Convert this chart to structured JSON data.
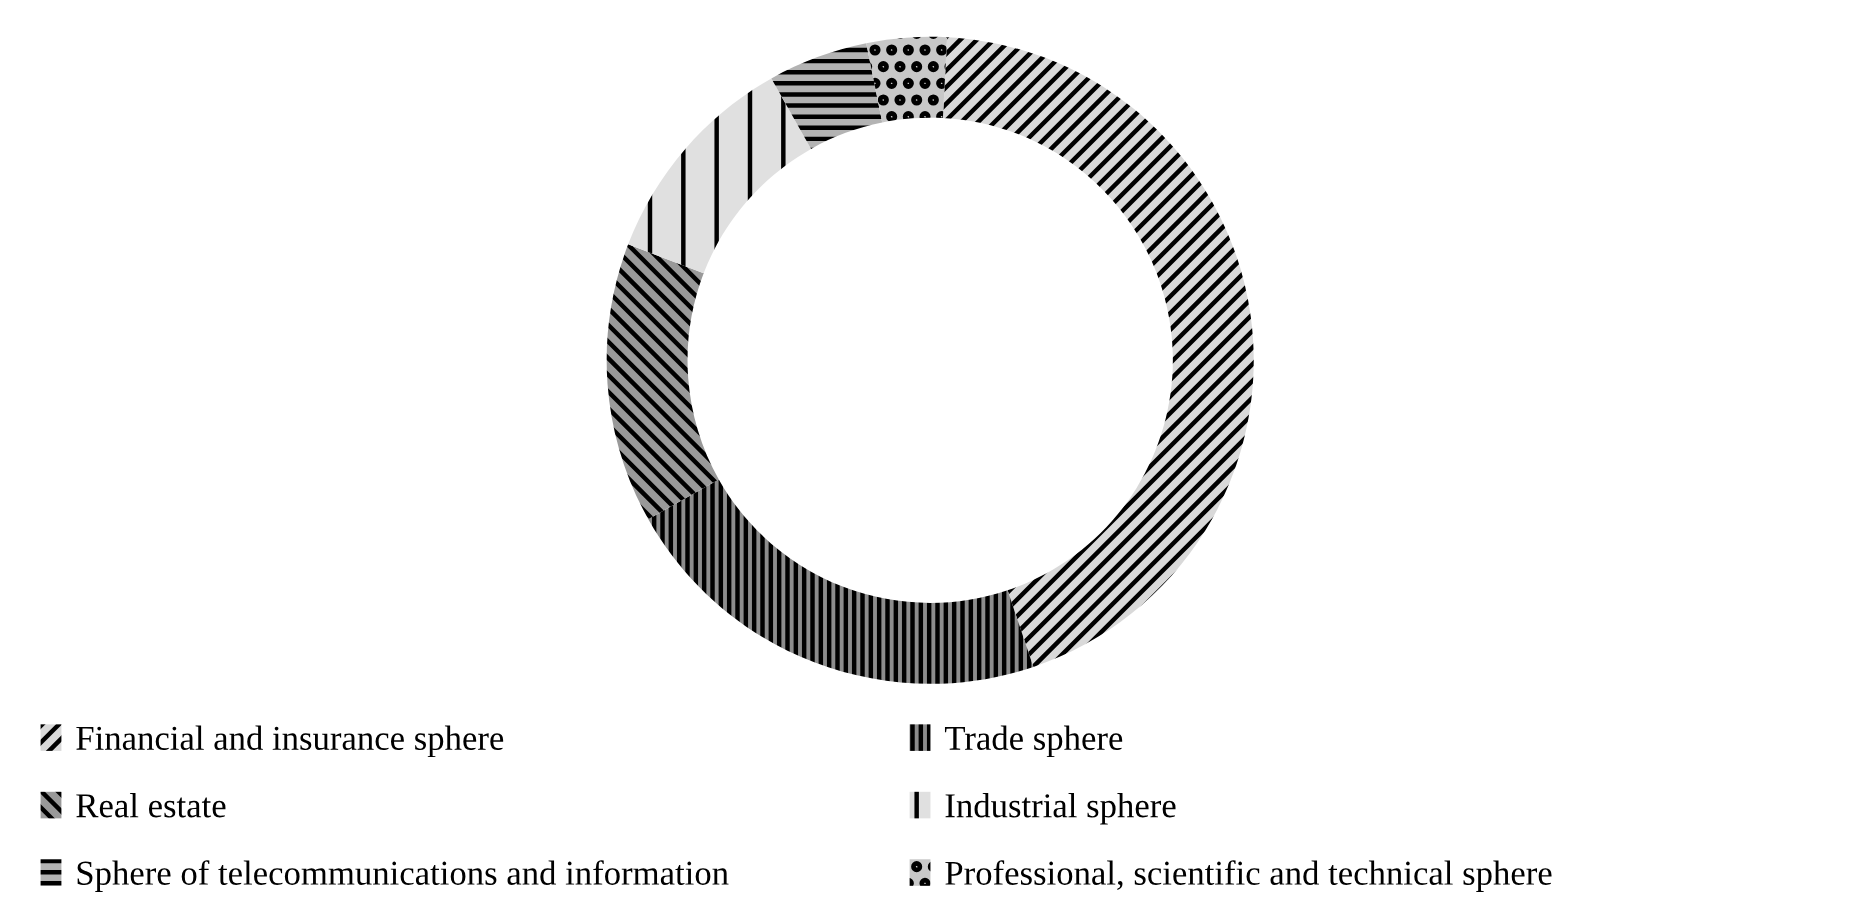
{
  "chart_data": {
    "type": "donut",
    "categories": [
      "Financial and insurance sphere",
      "Trade sphere",
      "Real estate",
      "Industrial sphere",
      "Sphere of telecommunications and information",
      "Professional, scientific and technical sphere"
    ],
    "values": [
      44,
      22,
      14,
      11,
      5,
      4
    ],
    "colors": [
      "#d9d9d9",
      "#8c8c8c",
      "#999999",
      "#e0e0e0",
      "#b3b3b3",
      "#c8c8c8"
    ],
    "legend": "bottom"
  }
}
